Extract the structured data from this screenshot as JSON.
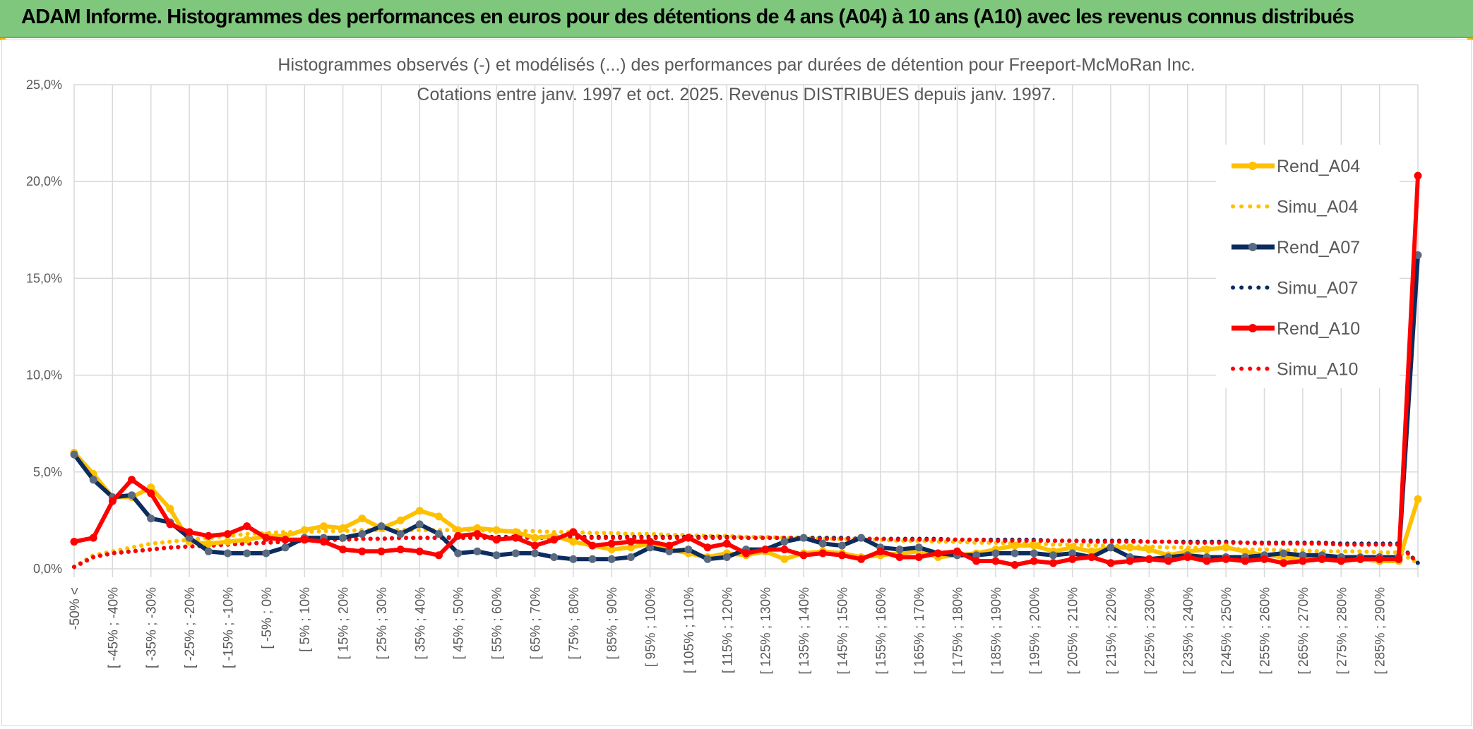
{
  "banner": {
    "title": "ADAM Informe. Histogrammes des performances en euros pour des détentions de 4 ans (A04) à 10 ans (A10) avec les revenus connus distribués"
  },
  "colors": {
    "a04": "#ffc000",
    "a07": "#0c2c5e",
    "a07_marker": "#5a6a80",
    "a10": "#ff0000",
    "grid": "#d9d9d9",
    "banner": "#80c77e"
  },
  "chart_data": {
    "type": "line",
    "title_lines": [
      "Histogrammes observés (-) et modélisés (...) des performances par durées de détention pour Freeport-McMoRan Inc.",
      "Cotations entre janv. 1997 et oct. 2025. Revenus DISTRIBUES depuis janv. 1997."
    ],
    "ylim": [
      0,
      25
    ],
    "yticks": [
      "0,0%",
      "5,0%",
      "10,0%",
      "15,0%",
      "20,0%",
      "25,0%"
    ],
    "grid": true,
    "legend_position": "right",
    "x_tick_labels": [
      "-50% <",
      "[ -45% ; -40%",
      "[ -35% ; -30%",
      "[ -25% ; -20%",
      "[ -15% ; -10%",
      "[ -5% ; 0%",
      "[ 5% ; 10%",
      "[ 15% ; 20%",
      "[ 25% ; 30%",
      "[ 35% ; 40%",
      "[ 45% ; 50%",
      "[ 55% ; 60%",
      "[ 65% ; 70%",
      "[ 75% ; 80%",
      "[ 85% ; 90%",
      "[ 95% ; 100%",
      "[ 105% ; 110%",
      "[ 115% ; 120%",
      "[ 125% ; 130%",
      "[ 135% ; 140%",
      "[ 145% ; 150%",
      "[ 155% ; 160%",
      "[ 165% ; 170%",
      "[ 175% ; 180%",
      "[ 185% ; 190%",
      "[ 195% ; 200%",
      "[ 205% ; 210%",
      "[ 215% ; 220%",
      "[ 225% ; 230%",
      "[ 235% ; 240%",
      "[ 245% ; 250%",
      "[ 255% ; 260%",
      "[ 265% ; 270%",
      "[ 275% ; 280%",
      "[ 285% ; 290%"
    ],
    "x_tick_every": 2,
    "category_count": 71,
    "series": [
      {
        "name": "Rend_A04",
        "style": "solid",
        "color_key": "a04",
        "values": [
          6.0,
          4.9,
          3.7,
          3.7,
          4.2,
          3.1,
          1.4,
          1.3,
          1.4,
          1.5,
          1.7,
          1.7,
          2.0,
          2.2,
          2.1,
          2.6,
          2.1,
          2.5,
          3.0,
          2.7,
          2.0,
          2.1,
          2.0,
          1.9,
          1.6,
          1.7,
          1.4,
          1.2,
          1.0,
          1.1,
          1.3,
          1.0,
          0.8,
          0.6,
          0.8,
          0.7,
          0.9,
          0.5,
          0.8,
          0.9,
          0.8,
          0.6,
          0.7,
          0.8,
          0.9,
          0.6,
          0.7,
          0.8,
          1.0,
          1.2,
          1.2,
          0.9,
          1.1,
          0.9,
          1.1,
          1.1,
          1.0,
          0.7,
          0.9,
          1.0,
          1.1,
          0.9,
          0.7,
          0.6,
          0.5,
          0.5,
          0.6,
          0.5,
          0.4,
          0.4,
          3.6
        ]
      },
      {
        "name": "Simu_A04",
        "style": "dotted",
        "color_key": "a04",
        "values": [
          0.1,
          0.7,
          0.9,
          1.1,
          1.3,
          1.4,
          1.5,
          1.6,
          1.7,
          1.8,
          1.85,
          1.9,
          1.9,
          1.95,
          1.95,
          2.0,
          2.0,
          2.0,
          2.0,
          2.0,
          2.0,
          2.0,
          1.95,
          1.95,
          1.95,
          1.9,
          1.9,
          1.85,
          1.85,
          1.8,
          1.8,
          1.75,
          1.75,
          1.7,
          1.7,
          1.65,
          1.65,
          1.6,
          1.6,
          1.55,
          1.55,
          1.5,
          1.5,
          1.45,
          1.45,
          1.4,
          1.4,
          1.35,
          1.35,
          1.3,
          1.3,
          1.25,
          1.25,
          1.2,
          1.2,
          1.15,
          1.15,
          1.1,
          1.1,
          1.05,
          1.05,
          1.0,
          1.0,
          0.95,
          0.95,
          0.9,
          0.9,
          0.9,
          0.85,
          0.85,
          0.3
        ]
      },
      {
        "name": "Rend_A07",
        "style": "solid",
        "color_key": "a07",
        "values": [
          5.9,
          4.6,
          3.7,
          3.8,
          2.6,
          2.4,
          1.6,
          0.9,
          0.8,
          0.8,
          0.8,
          1.1,
          1.6,
          1.6,
          1.6,
          1.8,
          2.2,
          1.8,
          2.3,
          1.8,
          0.8,
          0.9,
          0.7,
          0.8,
          0.8,
          0.6,
          0.5,
          0.5,
          0.5,
          0.6,
          1.1,
          0.9,
          1.0,
          0.5,
          0.6,
          1.0,
          1.0,
          1.4,
          1.6,
          1.3,
          1.2,
          1.6,
          1.1,
          1.0,
          1.1,
          0.8,
          0.7,
          0.7,
          0.8,
          0.8,
          0.8,
          0.7,
          0.8,
          0.6,
          1.1,
          0.6,
          0.5,
          0.6,
          0.7,
          0.6,
          0.6,
          0.6,
          0.7,
          0.8,
          0.7,
          0.7,
          0.6,
          0.6,
          0.6,
          0.6,
          16.2
        ]
      },
      {
        "name": "Simu_A07",
        "style": "dotted",
        "color_key": "a07",
        "values": [
          0.1,
          0.6,
          0.8,
          0.9,
          1.0,
          1.1,
          1.15,
          1.2,
          1.25,
          1.3,
          1.35,
          1.4,
          1.45,
          1.5,
          1.5,
          1.55,
          1.55,
          1.6,
          1.6,
          1.6,
          1.65,
          1.65,
          1.65,
          1.65,
          1.65,
          1.65,
          1.65,
          1.65,
          1.65,
          1.65,
          1.65,
          1.65,
          1.65,
          1.65,
          1.65,
          1.6,
          1.6,
          1.6,
          1.6,
          1.6,
          1.6,
          1.55,
          1.55,
          1.55,
          1.55,
          1.55,
          1.5,
          1.5,
          1.5,
          1.5,
          1.5,
          1.45,
          1.45,
          1.45,
          1.45,
          1.45,
          1.4,
          1.4,
          1.4,
          1.4,
          1.4,
          1.35,
          1.35,
          1.35,
          1.35,
          1.35,
          1.3,
          1.3,
          1.3,
          1.3,
          0.3
        ]
      },
      {
        "name": "Rend_A10",
        "style": "solid",
        "color_key": "a10",
        "values": [
          1.4,
          1.6,
          3.5,
          4.6,
          3.9,
          2.3,
          1.9,
          1.7,
          1.8,
          2.2,
          1.6,
          1.5,
          1.5,
          1.4,
          1.0,
          0.9,
          0.9,
          1.0,
          0.9,
          0.7,
          1.7,
          1.8,
          1.5,
          1.6,
          1.2,
          1.5,
          1.9,
          1.2,
          1.3,
          1.4,
          1.4,
          1.2,
          1.6,
          1.1,
          1.3,
          0.8,
          1.0,
          1.0,
          0.7,
          0.8,
          0.7,
          0.5,
          0.9,
          0.6,
          0.6,
          0.8,
          0.9,
          0.4,
          0.4,
          0.2,
          0.4,
          0.3,
          0.5,
          0.6,
          0.3,
          0.4,
          0.5,
          0.4,
          0.6,
          0.4,
          0.5,
          0.4,
          0.5,
          0.3,
          0.4,
          0.5,
          0.4,
          0.5,
          0.5,
          0.5,
          20.3
        ]
      },
      {
        "name": "Simu_A10",
        "style": "dotted",
        "color_key": "a10",
        "values": [
          0.1,
          0.6,
          0.8,
          0.9,
          1.0,
          1.1,
          1.15,
          1.2,
          1.25,
          1.3,
          1.35,
          1.4,
          1.45,
          1.5,
          1.5,
          1.55,
          1.55,
          1.6,
          1.6,
          1.6,
          1.6,
          1.6,
          1.6,
          1.6,
          1.6,
          1.6,
          1.6,
          1.6,
          1.6,
          1.6,
          1.6,
          1.6,
          1.6,
          1.6,
          1.6,
          1.6,
          1.6,
          1.6,
          1.55,
          1.55,
          1.55,
          1.55,
          1.55,
          1.5,
          1.5,
          1.5,
          1.5,
          1.5,
          1.45,
          1.45,
          1.45,
          1.45,
          1.45,
          1.4,
          1.4,
          1.4,
          1.4,
          1.4,
          1.35,
          1.35,
          1.35,
          1.35,
          1.3,
          1.3,
          1.3,
          1.3,
          1.25,
          1.25,
          1.25,
          1.25,
          0.3
        ]
      }
    ]
  }
}
